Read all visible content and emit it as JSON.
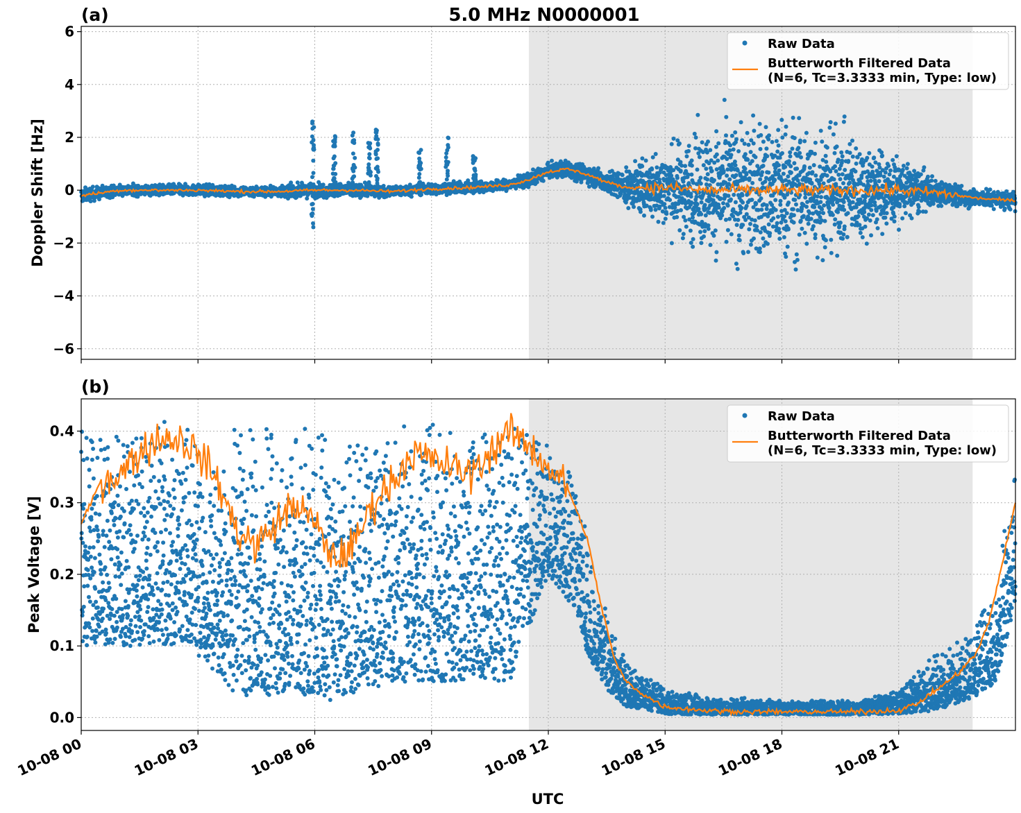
{
  "figure": {
    "title": "5.0 MHz N0000001",
    "xlabel": "UTC",
    "x_tick_labels": [
      "10-08 00",
      "10-08 03",
      "10-08 06",
      "10-08 09",
      "10-08 12",
      "10-08 15",
      "10-08 18",
      "10-08 21"
    ]
  },
  "legend": {
    "raw_label": "Raw Data",
    "filtered_label_line1": "Butterworth Filtered Data",
    "filtered_label_line2": "(N=6, Tc=3.3333 min, Type: low)"
  },
  "colors": {
    "raw": "#1f77b4",
    "filtered": "#ff7f0e",
    "shade": "#e6e6e6",
    "grid": "#b0b0b0"
  },
  "chart_data": [
    {
      "panel": "(a)",
      "type": "scatter",
      "ylabel": "Doppler Shift [Hz]",
      "xlim_hours": [
        0,
        24
      ],
      "ylim": [
        -6.4,
        6.2
      ],
      "y_ticks": [
        -6,
        -4,
        -2,
        0,
        2,
        4,
        6
      ],
      "y_tick_labels": [
        "−6",
        "−4",
        "−2",
        "0",
        "2",
        "4",
        "6"
      ],
      "shaded_region_hours": [
        11.5,
        22.9
      ],
      "grid": true,
      "legend_position": "upper right",
      "series": [
        {
          "name": "Raw Data",
          "style": "points",
          "envelope_hours": [
            0,
            1,
            2,
            3,
            4,
            5,
            6,
            7,
            8,
            9,
            10,
            11,
            11.5,
            12,
            12.5,
            13,
            13.5,
            14,
            15,
            16,
            17,
            18,
            19,
            20,
            21,
            22,
            23,
            24
          ],
          "center": [
            -0.2,
            0.0,
            0.0,
            0.0,
            -0.05,
            -0.05,
            0.0,
            0.0,
            -0.05,
            0.05,
            0.1,
            0.2,
            0.4,
            0.7,
            0.8,
            0.6,
            0.3,
            0.1,
            0.1,
            0.0,
            0.0,
            0.0,
            0.0,
            0.0,
            0.0,
            -0.1,
            -0.3,
            -0.4
          ],
          "half_spread": [
            0.4,
            0.3,
            0.3,
            0.3,
            0.3,
            0.3,
            0.4,
            0.35,
            0.3,
            0.3,
            0.3,
            0.3,
            0.4,
            0.4,
            0.5,
            0.5,
            0.6,
            1.0,
            2.2,
            3.2,
            3.8,
            3.9,
            3.5,
            2.8,
            1.8,
            0.7,
            0.5,
            0.5
          ],
          "spikes": [
            {
              "hour": 5.95,
              "low": -1.5,
              "high": 2.6
            },
            {
              "hour": 6.5,
              "low": -0.4,
              "high": 2.1
            },
            {
              "hour": 7.0,
              "low": -0.3,
              "high": 2.2
            },
            {
              "hour": 7.4,
              "low": -0.3,
              "high": 1.8
            },
            {
              "hour": 7.6,
              "low": -0.2,
              "high": 2.3
            },
            {
              "hour": 8.7,
              "low": -0.2,
              "high": 1.6
            },
            {
              "hour": 9.4,
              "low": -0.2,
              "high": 2.0
            },
            {
              "hour": 10.1,
              "low": -0.2,
              "high": 1.4
            }
          ]
        },
        {
          "name": "Butterworth Filtered Data",
          "style": "line",
          "noise_amplitude_hz": 0.1,
          "noisy_window_hours": [
            14.5,
            22.5
          ],
          "noisy_amplitude_hz": 0.35
        }
      ]
    },
    {
      "panel": "(b)",
      "type": "scatter",
      "ylabel": "Peak Voltage [V]",
      "xlim_hours": [
        0,
        24
      ],
      "ylim": [
        -0.018,
        0.445
      ],
      "y_ticks": [
        0.0,
        0.1,
        0.2,
        0.3,
        0.4
      ],
      "y_tick_labels": [
        "0.0",
        "0.1",
        "0.2",
        "0.3",
        "0.4"
      ],
      "shaded_region_hours": [
        11.5,
        22.9
      ],
      "grid": true,
      "legend_position": "upper right",
      "series": [
        {
          "name": "Raw Data",
          "style": "points",
          "envelope_hours": [
            0,
            0.3,
            0.8,
            1.5,
            2.5,
            3.5,
            4.0,
            5.0,
            6.0,
            6.5,
            7.0,
            8.0,
            9.0,
            10.0,
            11.0,
            12.0,
            12.7,
            13.0,
            13.5,
            14.0,
            15.0,
            16.0,
            18.0,
            20.0,
            21.0,
            22.0,
            23.0,
            23.5,
            24.0
          ],
          "upper": [
            0.4,
            0.42,
            0.42,
            0.42,
            0.42,
            0.4,
            0.41,
            0.41,
            0.41,
            0.41,
            0.41,
            0.42,
            0.42,
            0.42,
            0.42,
            0.41,
            0.35,
            0.25,
            0.15,
            0.08,
            0.045,
            0.03,
            0.025,
            0.025,
            0.04,
            0.1,
            0.13,
            0.2,
            0.37
          ],
          "lower": [
            0.1,
            0.1,
            0.1,
            0.1,
            0.1,
            0.06,
            0.03,
            0.03,
            0.03,
            0.02,
            0.03,
            0.05,
            0.05,
            0.05,
            0.05,
            0.2,
            0.15,
            0.09,
            0.04,
            0.015,
            0.005,
            0.004,
            0.004,
            0.004,
            0.005,
            0.01,
            0.03,
            0.05,
            0.16
          ]
        },
        {
          "name": "Butterworth Filtered Data",
          "style": "line",
          "key_hours": [
            0,
            0.5,
            1.0,
            1.5,
            2.0,
            2.5,
            3.0,
            3.5,
            4.0,
            4.5,
            5.0,
            5.5,
            6.0,
            6.5,
            7.0,
            7.5,
            8.0,
            8.5,
            9.0,
            9.5,
            10.0,
            10.5,
            11.0,
            11.5,
            12.0,
            12.5,
            13.0,
            13.3,
            13.7,
            14.0,
            14.5,
            15.0,
            16.0,
            17.0,
            18.0,
            19.0,
            20.0,
            21.0,
            21.5,
            22.0,
            22.5,
            23.0,
            23.3,
            23.6,
            24.0
          ],
          "key_values": [
            0.27,
            0.33,
            0.34,
            0.37,
            0.39,
            0.39,
            0.37,
            0.33,
            0.26,
            0.24,
            0.27,
            0.3,
            0.27,
            0.22,
            0.24,
            0.3,
            0.33,
            0.37,
            0.36,
            0.35,
            0.34,
            0.37,
            0.4,
            0.38,
            0.35,
            0.32,
            0.25,
            0.17,
            0.08,
            0.05,
            0.03,
            0.015,
            0.01,
            0.008,
            0.008,
            0.008,
            0.008,
            0.01,
            0.02,
            0.04,
            0.06,
            0.09,
            0.13,
            0.2,
            0.3
          ],
          "wiggle_amplitude_v": 0.045,
          "wiggle_window_hours": [
            0.5,
            12.5
          ]
        }
      ]
    }
  ]
}
